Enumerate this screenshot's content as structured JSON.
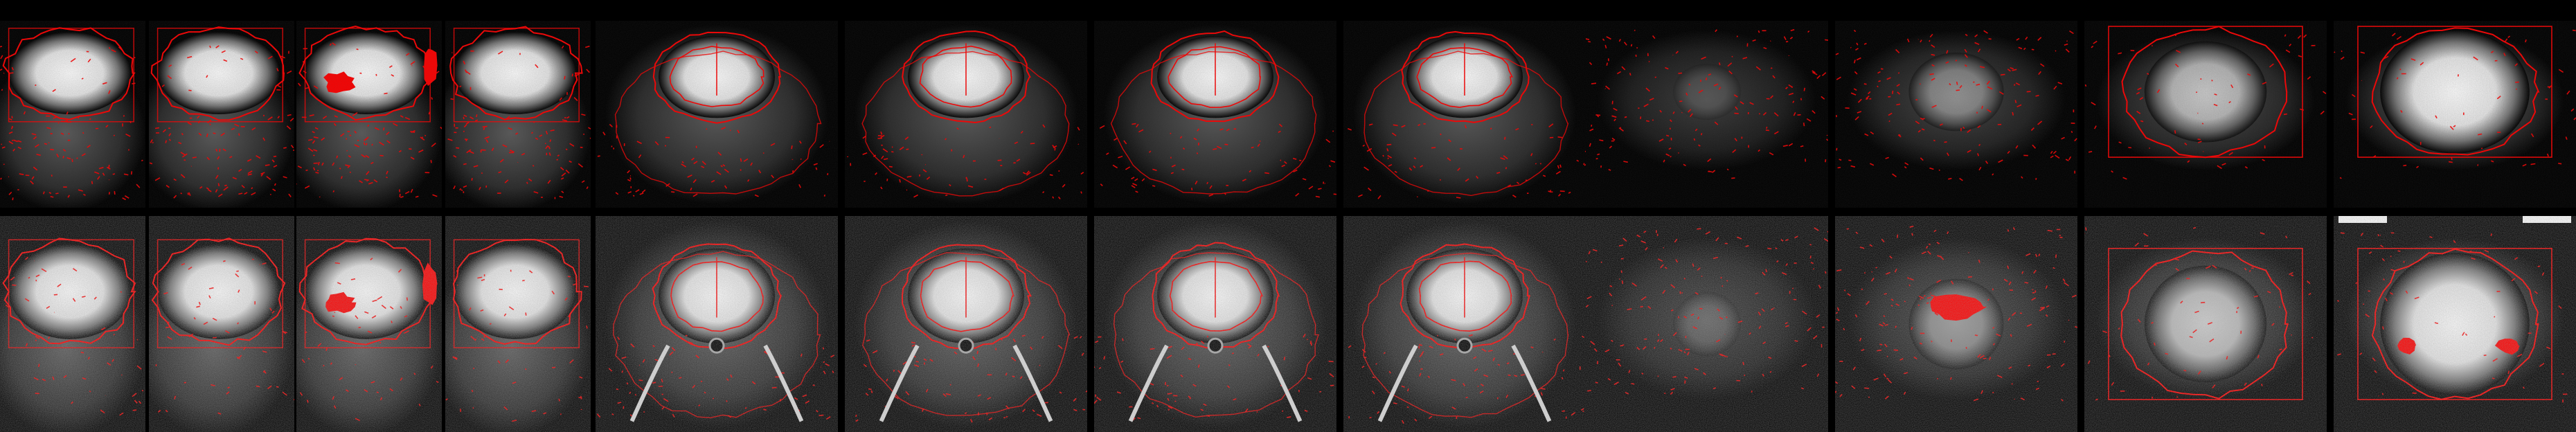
{
  "figure": {
    "background": "#000000",
    "outline_color": "#ff0000",
    "rows": [
      {
        "id": "template-row",
        "kind": "template",
        "groups": [
          {
            "id": "sagittal",
            "view": "sagittal",
            "count": 4
          },
          {
            "id": "coronal",
            "view": "coronal",
            "count": 4
          },
          {
            "id": "axial",
            "view": "axial",
            "count": 4
          }
        ]
      },
      {
        "id": "subject-row",
        "kind": "subject",
        "groups": [
          {
            "id": "sagittal",
            "view": "sagittal",
            "count": 4
          },
          {
            "id": "coronal",
            "view": "coronal",
            "count": 4
          },
          {
            "id": "axial",
            "view": "axial",
            "count": 4
          }
        ]
      }
    ]
  }
}
